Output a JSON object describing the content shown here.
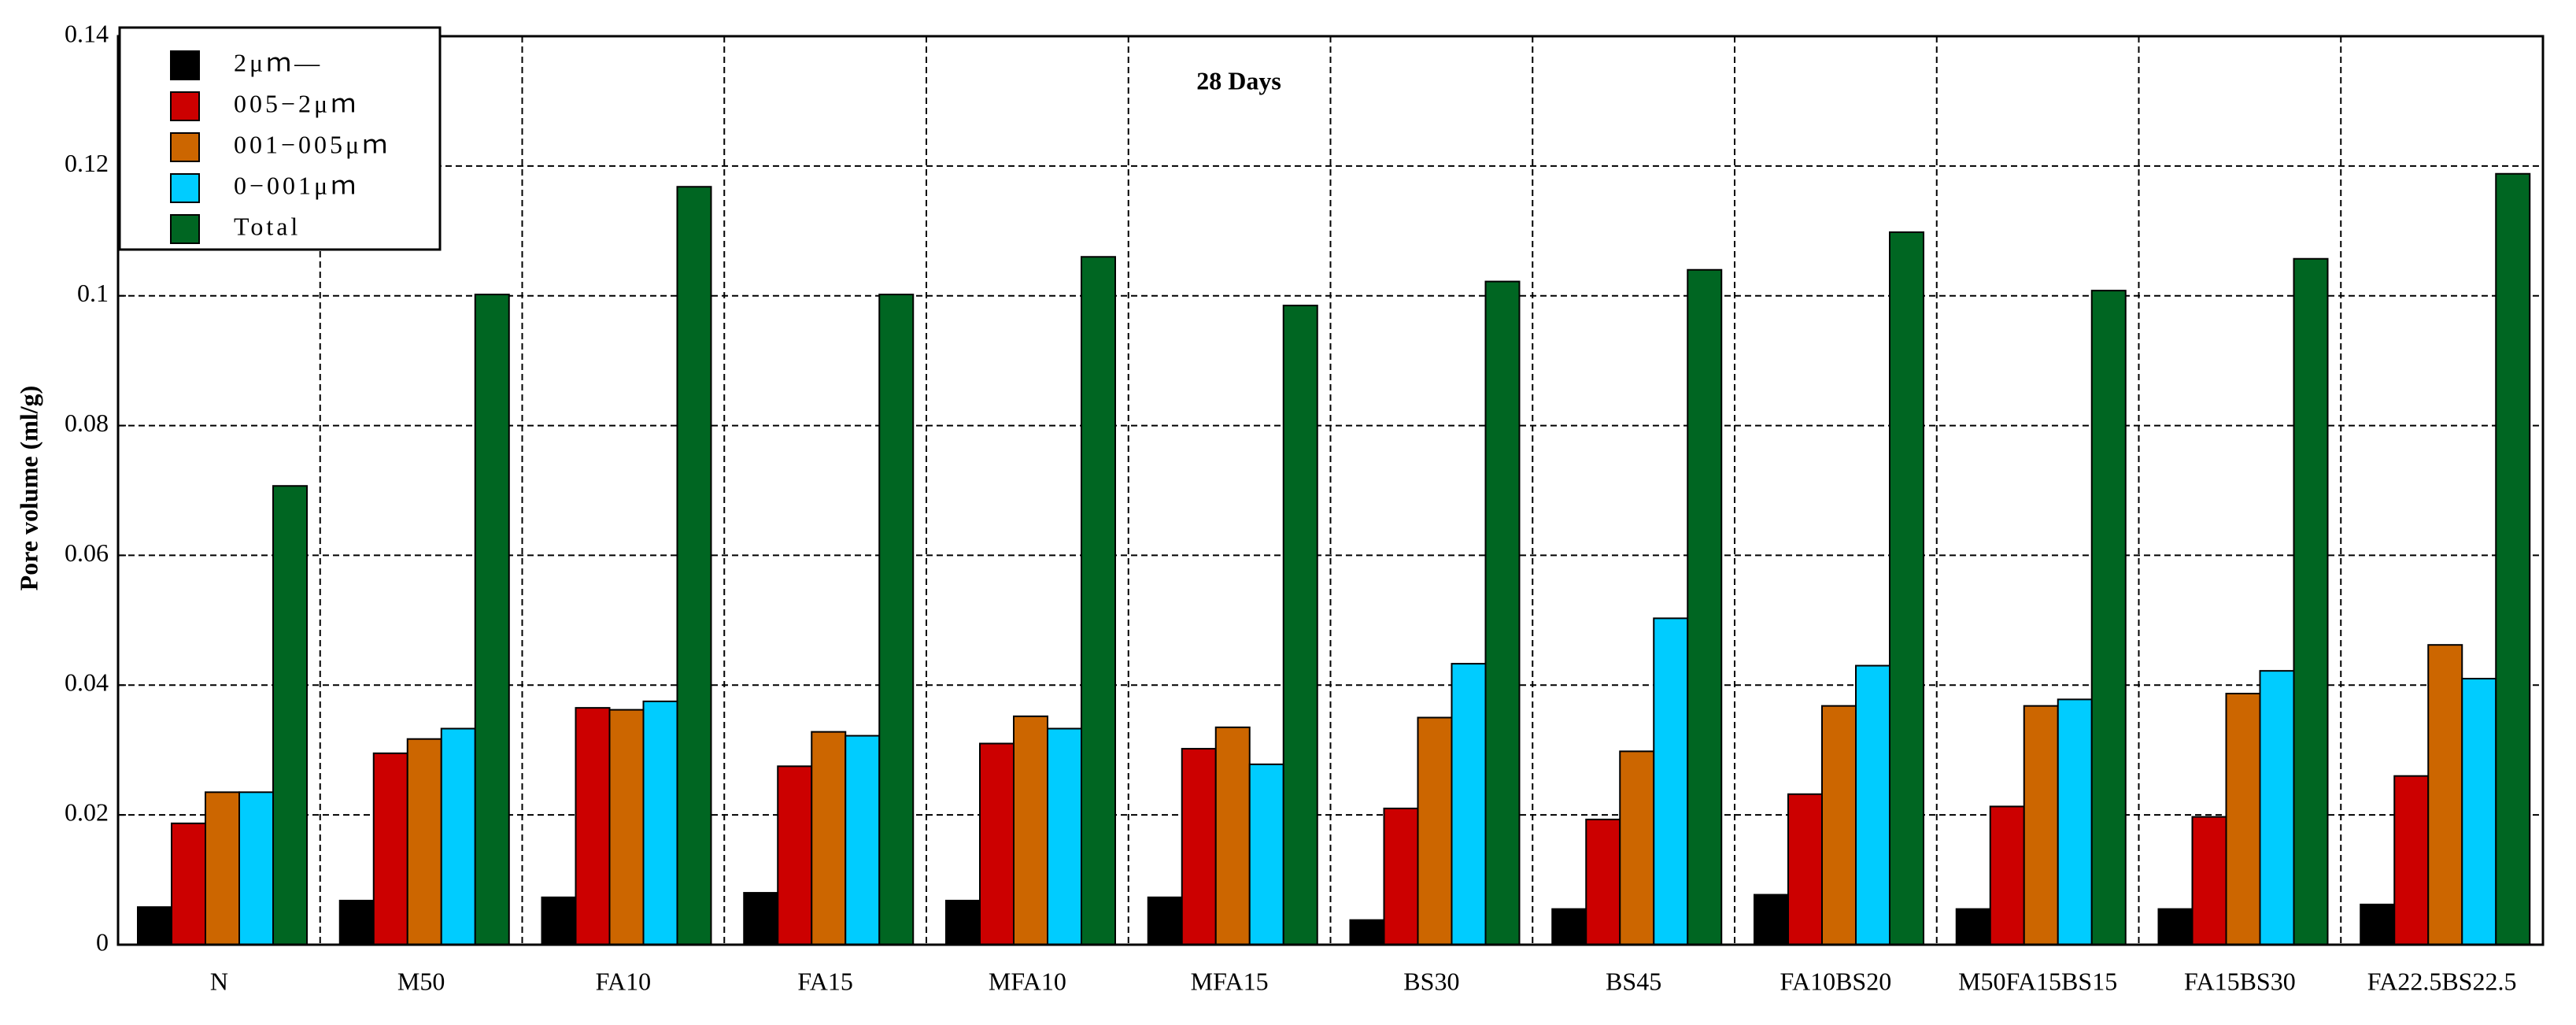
{
  "chart_data": {
    "type": "bar",
    "title": "28 Days",
    "y_label": "Pore volume (ml/g)",
    "categories": [
      "N",
      "M50",
      "FA10",
      "FA15",
      "MFA10",
      "MFA15",
      "BS30",
      "BS45",
      "FA10BS20",
      "M50FA15BS15",
      "FA15BS30",
      "FA22.5BS22.5"
    ],
    "series": [
      {
        "name": "2μｍ—",
        "color": "#000000",
        "values": [
          0.0058,
          0.0068,
          0.0073,
          0.008,
          0.0068,
          0.0073,
          0.0038,
          0.0055,
          0.0077,
          0.0055,
          0.0055,
          0.0062
        ]
      },
      {
        "name": "005−2μｍ",
        "color": "#cc0000",
        "values": [
          0.0187,
          0.0295,
          0.0365,
          0.0275,
          0.031,
          0.0302,
          0.021,
          0.0193,
          0.0232,
          0.0213,
          0.0197,
          0.026
        ]
      },
      {
        "name": "001−005μｍ",
        "color": "#cc6600",
        "values": [
          0.0235,
          0.0317,
          0.0362,
          0.0328,
          0.0352,
          0.0335,
          0.035,
          0.0298,
          0.0368,
          0.0368,
          0.0387,
          0.0462
        ]
      },
      {
        "name": "0−001μｍ",
        "color": "#00ccff",
        "values": [
          0.0235,
          0.0333,
          0.0375,
          0.0322,
          0.0333,
          0.0278,
          0.0433,
          0.0503,
          0.043,
          0.0378,
          0.0422,
          0.041
        ]
      },
      {
        "name": "Total",
        "color": "#006622",
        "values": [
          0.0707,
          0.1002,
          0.1168,
          0.1002,
          0.106,
          0.0985,
          0.1022,
          0.104,
          0.1098,
          0.1008,
          0.1057,
          0.1188
        ]
      }
    ],
    "ylim": [
      0,
      0.14
    ],
    "yticks": [
      0,
      0.02,
      0.04,
      0.06,
      0.08,
      0.1,
      0.12,
      0.14
    ],
    "grid": true,
    "legend": "top-left"
  }
}
